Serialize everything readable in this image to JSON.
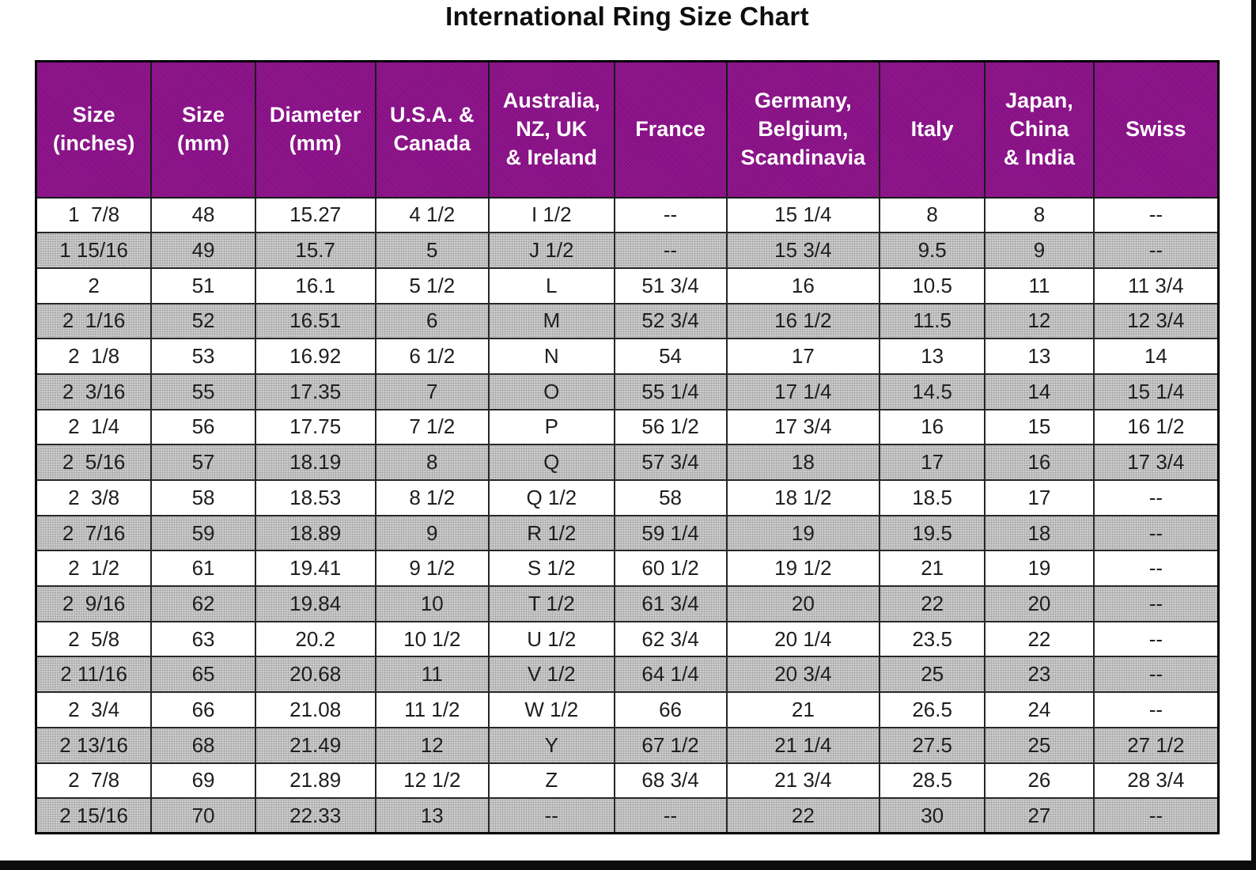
{
  "title": "International Ring Size Chart",
  "colors": {
    "header_background": "#8c0f8a",
    "header_text": "#ffffff",
    "shaded_row": "#cdcdcd",
    "border": "#1a1a1a",
    "title_text": "#0e0e0e"
  },
  "chart_data": {
    "type": "table",
    "title": "International Ring Size Chart",
    "grid": true,
    "columns": [
      "Size\n(inches)",
      "Size\n(mm)",
      "Diameter\n(mm)",
      "U.S.A. &\nCanada",
      "Australia,\nNZ, UK\n& Ireland",
      "France",
      "Germany,\nBelgium,\nScandinavia",
      "Italy",
      "Japan,\nChina\n& India",
      "Swiss"
    ],
    "rows": [
      [
        "1  7/8",
        "48",
        "15.27",
        "4 1/2",
        "I 1/2",
        "--",
        "15 1/4",
        "8",
        "8",
        "--"
      ],
      [
        "1 15/16",
        "49",
        "15.7",
        "5",
        "J 1/2",
        "--",
        "15 3/4",
        "9.5",
        "9",
        "--"
      ],
      [
        "2",
        "51",
        "16.1",
        "5 1/2",
        "L",
        "51 3/4",
        "16",
        "10.5",
        "11",
        "11 3/4"
      ],
      [
        "2  1/16",
        "52",
        "16.51",
        "6",
        "M",
        "52 3/4",
        "16 1/2",
        "11.5",
        "12",
        "12 3/4"
      ],
      [
        "2  1/8",
        "53",
        "16.92",
        "6 1/2",
        "N",
        "54",
        "17",
        "13",
        "13",
        "14"
      ],
      [
        "2  3/16",
        "55",
        "17.35",
        "7",
        "O",
        "55 1/4",
        "17 1/4",
        "14.5",
        "14",
        "15 1/4"
      ],
      [
        "2  1/4",
        "56",
        "17.75",
        "7 1/2",
        "P",
        "56 1/2",
        "17 3/4",
        "16",
        "15",
        "16 1/2"
      ],
      [
        "2  5/16",
        "57",
        "18.19",
        "8",
        "Q",
        "57 3/4",
        "18",
        "17",
        "16",
        "17 3/4"
      ],
      [
        "2  3/8",
        "58",
        "18.53",
        "8 1/2",
        "Q 1/2",
        "58",
        "18 1/2",
        "18.5",
        "17",
        "--"
      ],
      [
        "2  7/16",
        "59",
        "18.89",
        "9",
        "R 1/2",
        "59 1/4",
        "19",
        "19.5",
        "18",
        "--"
      ],
      [
        "2  1/2",
        "61",
        "19.41",
        "9 1/2",
        "S 1/2",
        "60 1/2",
        "19 1/2",
        "21",
        "19",
        "--"
      ],
      [
        "2  9/16",
        "62",
        "19.84",
        "10",
        "T 1/2",
        "61 3/4",
        "20",
        "22",
        "20",
        "--"
      ],
      [
        "2  5/8",
        "63",
        "20.2",
        "10 1/2",
        "U 1/2",
        "62 3/4",
        "20 1/4",
        "23.5",
        "22",
        "--"
      ],
      [
        "2 11/16",
        "65",
        "20.68",
        "11",
        "V 1/2",
        "64 1/4",
        "20 3/4",
        "25",
        "23",
        "--"
      ],
      [
        "2  3/4",
        "66",
        "21.08",
        "11 1/2",
        "W 1/2",
        "66",
        "21",
        "26.5",
        "24",
        "--"
      ],
      [
        "2 13/16",
        "68",
        "21.49",
        "12",
        "Y",
        "67 1/2",
        "21 1/4",
        "27.5",
        "25",
        "27 1/2"
      ],
      [
        "2  7/8",
        "69",
        "21.89",
        "12 1/2",
        "Z",
        "68 3/4",
        "21 3/4",
        "28.5",
        "26",
        "28 3/4"
      ],
      [
        "2 15/16",
        "70",
        "22.33",
        "13",
        "--",
        "--",
        "22",
        "30",
        "27",
        "--"
      ]
    ]
  }
}
